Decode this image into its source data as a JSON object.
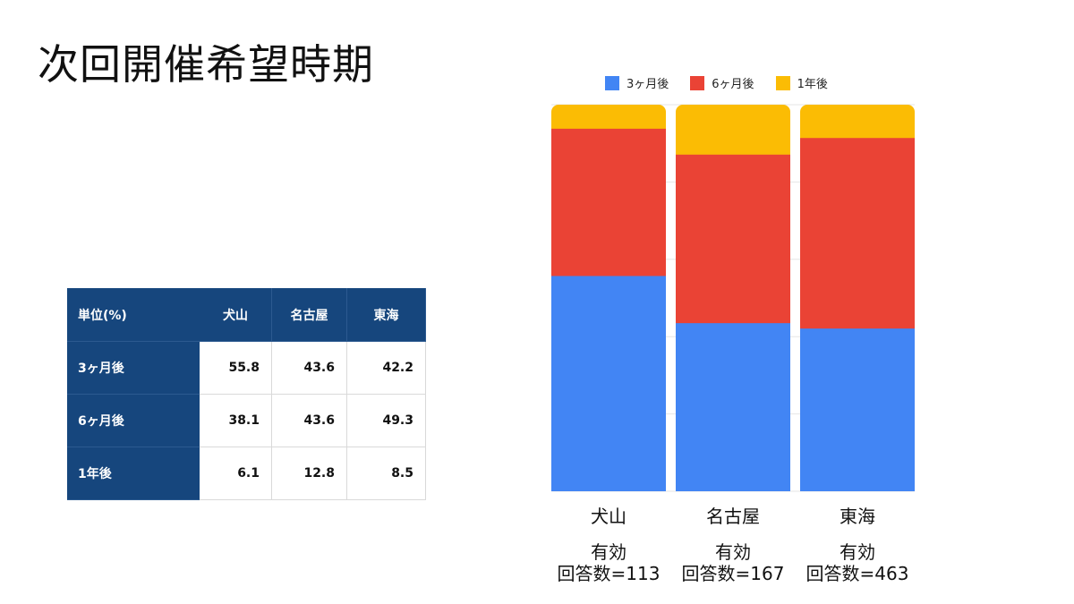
{
  "title": "次回開催希望時期",
  "table": {
    "corner_label": "単位(%)",
    "columns": [
      "犬山",
      "名古屋",
      "東海"
    ],
    "rows": [
      {
        "label": "3ヶ月後",
        "values": [
          "55.8",
          "43.6",
          "42.2"
        ]
      },
      {
        "label": "6ヶ月後",
        "values": [
          "38.1",
          "43.6",
          "49.3"
        ]
      },
      {
        "label": "1年後",
        "values": [
          "6.1",
          "12.8",
          "8.5"
        ]
      }
    ]
  },
  "chart_data": {
    "type": "bar",
    "stacked": true,
    "categories": [
      "犬山",
      "名古屋",
      "東海"
    ],
    "category_notes": [
      "有効",
      "有効",
      "有効"
    ],
    "category_counts": [
      "回答数=113",
      "回答数=167",
      "回答数=463"
    ],
    "series": [
      {
        "name": "3ヶ月後",
        "values": [
          55.8,
          43.6,
          42.2
        ],
        "color": "#4285f4"
      },
      {
        "name": "6ヶ月後",
        "values": [
          38.1,
          43.6,
          49.3
        ],
        "color": "#ea4335"
      },
      {
        "name": "1年後",
        "values": [
          6.1,
          12.8,
          8.5
        ],
        "color": "#fbbc04"
      }
    ],
    "ylim": [
      0,
      100
    ],
    "legend_position": "top",
    "grid": true
  }
}
